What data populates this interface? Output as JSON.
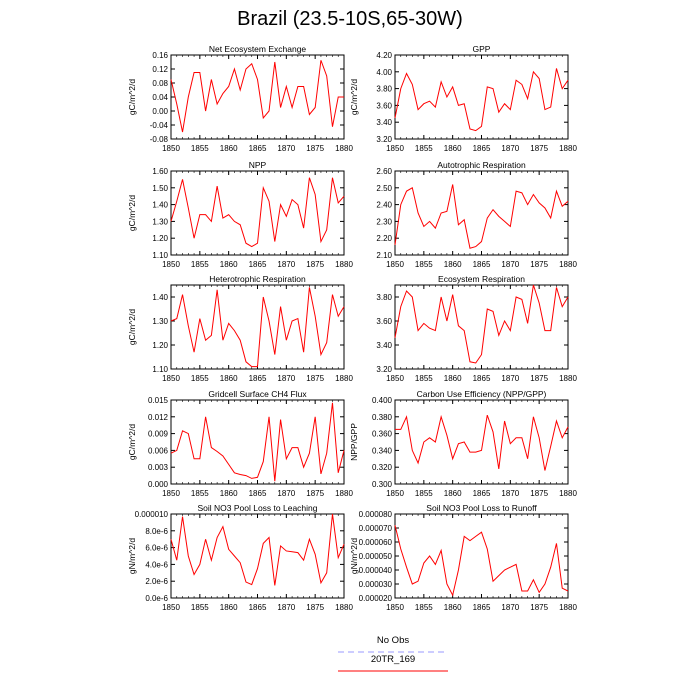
{
  "page": {
    "title": "Brazil (23.5-10S,65-30W)"
  },
  "legend": [
    {
      "label": "No Obs",
      "color": "#9999ff",
      "dash": "dashed"
    },
    {
      "label": "20TR_169",
      "color": "#ff0000",
      "dash": "solid"
    }
  ],
  "colors": {
    "series": "#ff0000",
    "axis": "#000000"
  },
  "chart_data": [
    {
      "type": "line",
      "title": "Net Ecosystem Exchange",
      "ylabel": "gC/m^2/d",
      "xlim": [
        1850,
        1880
      ],
      "ylim": [
        -0.08,
        0.16
      ],
      "xticks": [
        1850,
        1855,
        1860,
        1865,
        1870,
        1875,
        1880
      ],
      "yticks": [
        -0.08,
        -0.04,
        0.0,
        0.04,
        0.08,
        0.12,
        0.16
      ],
      "ytick_labels": [
        "-0.08",
        "-0.04",
        "0.00",
        "0.04",
        "0.08",
        "0.12",
        "0.16"
      ],
      "x": [
        1850,
        1851,
        1852,
        1853,
        1854,
        1855,
        1856,
        1857,
        1858,
        1859,
        1860,
        1861,
        1862,
        1863,
        1864,
        1865,
        1866,
        1867,
        1868,
        1869,
        1870,
        1871,
        1872,
        1873,
        1874,
        1875,
        1876,
        1877,
        1878,
        1879,
        1880
      ],
      "series": [
        {
          "values": [
            0.09,
            0.02,
            -0.06,
            0.04,
            0.11,
            0.11,
            0.0,
            0.09,
            0.02,
            0.05,
            0.07,
            0.12,
            0.06,
            0.12,
            0.135,
            0.09,
            -0.02,
            0.0,
            0.14,
            0.01,
            0.07,
            0.01,
            0.07,
            0.07,
            -0.01,
            0.01,
            0.145,
            0.1,
            -0.045,
            0.04,
            0.04
          ]
        }
      ]
    },
    {
      "type": "line",
      "title": "GPP",
      "ylabel": "gC/m^2/d",
      "xlim": [
        1850,
        1880
      ],
      "ylim": [
        3.2,
        4.2
      ],
      "xticks": [
        1850,
        1855,
        1860,
        1865,
        1870,
        1875,
        1880
      ],
      "yticks": [
        3.2,
        3.4,
        3.6,
        3.8,
        4.0,
        4.2
      ],
      "ytick_labels": [
        "3.20",
        "3.40",
        "3.60",
        "3.80",
        "4.00",
        "4.20"
      ],
      "x": [
        1850,
        1851,
        1852,
        1853,
        1854,
        1855,
        1856,
        1857,
        1858,
        1859,
        1860,
        1861,
        1862,
        1863,
        1864,
        1865,
        1866,
        1867,
        1868,
        1869,
        1870,
        1871,
        1872,
        1873,
        1874,
        1875,
        1876,
        1877,
        1878,
        1879,
        1880
      ],
      "series": [
        {
          "values": [
            3.45,
            3.8,
            3.98,
            3.85,
            3.55,
            3.62,
            3.65,
            3.58,
            3.88,
            3.7,
            3.82,
            3.6,
            3.62,
            3.32,
            3.3,
            3.35,
            3.82,
            3.8,
            3.52,
            3.62,
            3.55,
            3.9,
            3.85,
            3.68,
            4.0,
            3.92,
            3.55,
            3.58,
            4.04,
            3.8,
            3.9
          ]
        }
      ]
    },
    {
      "type": "line",
      "title": "NPP",
      "ylabel": "gC/m^2/d",
      "xlim": [
        1850,
        1880
      ],
      "ylim": [
        1.1,
        1.6
      ],
      "xticks": [
        1850,
        1855,
        1860,
        1865,
        1870,
        1875,
        1880
      ],
      "yticks": [
        1.1,
        1.2,
        1.3,
        1.4,
        1.5,
        1.6
      ],
      "ytick_labels": [
        "1.10",
        "1.20",
        "1.30",
        "1.40",
        "1.50",
        "1.60"
      ],
      "x": [
        1850,
        1851,
        1852,
        1853,
        1854,
        1855,
        1856,
        1857,
        1858,
        1859,
        1860,
        1861,
        1862,
        1863,
        1864,
        1865,
        1866,
        1867,
        1868,
        1869,
        1870,
        1871,
        1872,
        1873,
        1874,
        1875,
        1876,
        1877,
        1878,
        1879,
        1880
      ],
      "series": [
        {
          "values": [
            1.3,
            1.42,
            1.55,
            1.38,
            1.2,
            1.34,
            1.34,
            1.3,
            1.51,
            1.32,
            1.34,
            1.3,
            1.28,
            1.17,
            1.15,
            1.17,
            1.5,
            1.42,
            1.18,
            1.4,
            1.33,
            1.43,
            1.4,
            1.26,
            1.56,
            1.46,
            1.18,
            1.25,
            1.56,
            1.41,
            1.45
          ]
        }
      ]
    },
    {
      "type": "line",
      "title": "Autotrophic Respiration",
      "ylabel": "",
      "xlim": [
        1850,
        1880
      ],
      "ylim": [
        2.1,
        2.6
      ],
      "xticks": [
        1850,
        1855,
        1860,
        1865,
        1870,
        1875,
        1880
      ],
      "yticks": [
        2.1,
        2.2,
        2.3,
        2.4,
        2.5,
        2.6
      ],
      "ytick_labels": [
        "2.10",
        "2.20",
        "2.30",
        "2.40",
        "2.50",
        "2.60"
      ],
      "x": [
        1850,
        1851,
        1852,
        1853,
        1854,
        1855,
        1856,
        1857,
        1858,
        1859,
        1860,
        1861,
        1862,
        1863,
        1864,
        1865,
        1866,
        1867,
        1868,
        1869,
        1870,
        1871,
        1872,
        1873,
        1874,
        1875,
        1876,
        1877,
        1878,
        1879,
        1880
      ],
      "series": [
        {
          "values": [
            2.16,
            2.4,
            2.48,
            2.5,
            2.35,
            2.27,
            2.3,
            2.26,
            2.35,
            2.36,
            2.52,
            2.28,
            2.31,
            2.14,
            2.15,
            2.18,
            2.32,
            2.37,
            2.33,
            2.3,
            2.27,
            2.48,
            2.47,
            2.4,
            2.46,
            2.41,
            2.38,
            2.32,
            2.48,
            2.39,
            2.42
          ]
        }
      ]
    },
    {
      "type": "line",
      "title": "Heterotrophic Respiration",
      "ylabel": "gC/m^2/d",
      "xlim": [
        1850,
        1880
      ],
      "ylim": [
        1.1,
        1.45
      ],
      "xticks": [
        1850,
        1855,
        1860,
        1865,
        1870,
        1875,
        1880
      ],
      "yticks": [
        1.1,
        1.2,
        1.3,
        1.4
      ],
      "ytick_labels": [
        "1.10",
        "1.20",
        "1.30",
        "1.40"
      ],
      "x": [
        1850,
        1851,
        1852,
        1853,
        1854,
        1855,
        1856,
        1857,
        1858,
        1859,
        1860,
        1861,
        1862,
        1863,
        1864,
        1865,
        1866,
        1867,
        1868,
        1869,
        1870,
        1871,
        1872,
        1873,
        1874,
        1875,
        1876,
        1877,
        1878,
        1879,
        1880
      ],
      "series": [
        {
          "values": [
            1.3,
            1.31,
            1.41,
            1.28,
            1.17,
            1.31,
            1.22,
            1.24,
            1.43,
            1.22,
            1.29,
            1.26,
            1.22,
            1.13,
            1.11,
            1.11,
            1.4,
            1.3,
            1.16,
            1.36,
            1.22,
            1.3,
            1.31,
            1.17,
            1.44,
            1.32,
            1.16,
            1.21,
            1.41,
            1.32,
            1.36
          ]
        }
      ]
    },
    {
      "type": "line",
      "title": "Ecosystem Respiration",
      "ylabel": "",
      "xlim": [
        1850,
        1880
      ],
      "ylim": [
        3.2,
        3.9
      ],
      "xticks": [
        1850,
        1855,
        1860,
        1865,
        1870,
        1875,
        1880
      ],
      "yticks": [
        3.2,
        3.4,
        3.6,
        3.8
      ],
      "ytick_labels": [
        "3.20",
        "3.40",
        "3.60",
        "3.80"
      ],
      "x": [
        1850,
        1851,
        1852,
        1853,
        1854,
        1855,
        1856,
        1857,
        1858,
        1859,
        1860,
        1861,
        1862,
        1863,
        1864,
        1865,
        1866,
        1867,
        1868,
        1869,
        1870,
        1871,
        1872,
        1873,
        1874,
        1875,
        1876,
        1877,
        1878,
        1879,
        1880
      ],
      "series": [
        {
          "values": [
            3.46,
            3.72,
            3.85,
            3.8,
            3.52,
            3.58,
            3.54,
            3.52,
            3.8,
            3.6,
            3.82,
            3.56,
            3.52,
            3.26,
            3.25,
            3.32,
            3.7,
            3.68,
            3.48,
            3.6,
            3.52,
            3.8,
            3.78,
            3.58,
            3.9,
            3.75,
            3.52,
            3.52,
            3.88,
            3.72,
            3.8
          ]
        }
      ]
    },
    {
      "type": "line",
      "title": "Gridcell Surface CH4 Flux",
      "ylabel": "gC/m^2/d",
      "xlim": [
        1850,
        1880
      ],
      "ylim": [
        0.0,
        0.015
      ],
      "xticks": [
        1850,
        1855,
        1860,
        1865,
        1870,
        1875,
        1880
      ],
      "yticks": [
        0.0,
        0.003,
        0.006,
        0.009,
        0.012,
        0.015
      ],
      "ytick_labels": [
        "0.000",
        "0.003",
        "0.006",
        "0.009",
        "0.012",
        "0.015"
      ],
      "x": [
        1850,
        1851,
        1852,
        1853,
        1854,
        1855,
        1856,
        1857,
        1858,
        1859,
        1860,
        1861,
        1862,
        1863,
        1864,
        1865,
        1866,
        1867,
        1868,
        1869,
        1870,
        1871,
        1872,
        1873,
        1874,
        1875,
        1876,
        1877,
        1878,
        1879,
        1880
      ],
      "series": [
        {
          "values": [
            0.0055,
            0.006,
            0.0095,
            0.009,
            0.0045,
            0.0045,
            0.012,
            0.0065,
            0.0058,
            0.005,
            0.0035,
            0.002,
            0.0017,
            0.0015,
            0.001,
            0.0012,
            0.004,
            0.012,
            0.0005,
            0.0115,
            0.0045,
            0.0065,
            0.0065,
            0.003,
            0.0055,
            0.012,
            0.0018,
            0.0055,
            0.0145,
            0.002,
            0.006
          ]
        }
      ]
    },
    {
      "type": "line",
      "title": "Carbon Use Efficiency (NPP/GPP)",
      "ylabel": "NPP/GPP",
      "xlim": [
        1850,
        1880
      ],
      "ylim": [
        0.3,
        0.4
      ],
      "xticks": [
        1850,
        1855,
        1860,
        1865,
        1870,
        1875,
        1880
      ],
      "yticks": [
        0.3,
        0.32,
        0.34,
        0.36,
        0.38,
        0.4
      ],
      "ytick_labels": [
        "0.300",
        "0.320",
        "0.340",
        "0.360",
        "0.380",
        "0.400"
      ],
      "x": [
        1850,
        1851,
        1852,
        1853,
        1854,
        1855,
        1856,
        1857,
        1858,
        1859,
        1860,
        1861,
        1862,
        1863,
        1864,
        1865,
        1866,
        1867,
        1868,
        1869,
        1870,
        1871,
        1872,
        1873,
        1874,
        1875,
        1876,
        1877,
        1878,
        1879,
        1880
      ],
      "series": [
        {
          "values": [
            0.365,
            0.365,
            0.38,
            0.34,
            0.325,
            0.35,
            0.355,
            0.35,
            0.38,
            0.358,
            0.33,
            0.348,
            0.35,
            0.338,
            0.338,
            0.34,
            0.382,
            0.362,
            0.318,
            0.375,
            0.348,
            0.355,
            0.355,
            0.33,
            0.38,
            0.355,
            0.316,
            0.345,
            0.375,
            0.355,
            0.368
          ]
        }
      ]
    },
    {
      "type": "line",
      "title": "Soil NO3 Pool Loss to Leaching",
      "ylabel": "gN/m^2/d",
      "xlim": [
        1850,
        1880
      ],
      "ylim": [
        0.0,
        1e-05
      ],
      "xticks": [
        1850,
        1855,
        1860,
        1865,
        1870,
        1875,
        1880
      ],
      "yticks": [
        0.0,
        2e-06,
        4e-06,
        6e-06,
        8e-06,
        1e-05
      ],
      "ytick_labels": [
        "0.0e-6",
        "2.0e-6",
        "4.0e-6",
        "6.0e-6",
        "8.0e-6",
        "0.000010"
      ],
      "x": [
        1850,
        1851,
        1852,
        1853,
        1854,
        1855,
        1856,
        1857,
        1858,
        1859,
        1860,
        1861,
        1862,
        1863,
        1864,
        1865,
        1866,
        1867,
        1868,
        1869,
        1870,
        1871,
        1872,
        1873,
        1874,
        1875,
        1876,
        1877,
        1878,
        1879,
        1880
      ],
      "series": [
        {
          "values": [
            7e-06,
            4.5e-06,
            9.7e-06,
            5e-06,
            2.8e-06,
            4e-06,
            7e-06,
            4.5e-06,
            7.2e-06,
            8.5e-06,
            5.8e-06,
            5e-06,
            4.2e-06,
            1.9e-06,
            1.6e-06,
            3.5e-06,
            6.5e-06,
            7.2e-06,
            1.5e-06,
            6.2e-06,
            5.6e-06,
            5.5e-06,
            5.4e-06,
            4.5e-06,
            7e-06,
            5.2e-06,
            1.8e-06,
            3e-06,
            1e-05,
            4.8e-06,
            6.4e-06
          ]
        }
      ]
    },
    {
      "type": "line",
      "title": "Soil NO3 Pool Loss to Runoff",
      "ylabel": "gN/m^2/d",
      "xlim": [
        1850,
        1880
      ],
      "ylim": [
        2e-05,
        8e-05
      ],
      "xticks": [
        1850,
        1855,
        1860,
        1865,
        1870,
        1875,
        1880
      ],
      "yticks": [
        2e-05,
        3e-05,
        4e-05,
        5e-05,
        6e-05,
        7e-05,
        8e-05
      ],
      "ytick_labels": [
        "0.000020",
        "0.000030",
        "0.000040",
        "0.000050",
        "0.000060",
        "0.000070",
        "0.000080"
      ],
      "x": [
        1850,
        1851,
        1852,
        1853,
        1854,
        1855,
        1856,
        1857,
        1858,
        1859,
        1860,
        1861,
        1862,
        1863,
        1864,
        1865,
        1866,
        1867,
        1868,
        1869,
        1870,
        1871,
        1872,
        1873,
        1874,
        1875,
        1876,
        1877,
        1878,
        1879,
        1880
      ],
      "series": [
        {
          "values": [
            7.2e-05,
            5.5e-05,
            4.2e-05,
            3e-05,
            3.2e-05,
            4.5e-05,
            5e-05,
            4.4e-05,
            5.4e-05,
            3e-05,
            2.2e-05,
            4e-05,
            6.4e-05,
            6.1e-05,
            6.4e-05,
            6.7e-05,
            5.5e-05,
            3.2e-05,
            3.6e-05,
            4e-05,
            4.2e-05,
            4.4e-05,
            2.5e-05,
            2.5e-05,
            3.3e-05,
            2.4e-05,
            3e-05,
            4.2e-05,
            5.9e-05,
            2.7e-05,
            2.5e-05
          ]
        }
      ]
    }
  ]
}
